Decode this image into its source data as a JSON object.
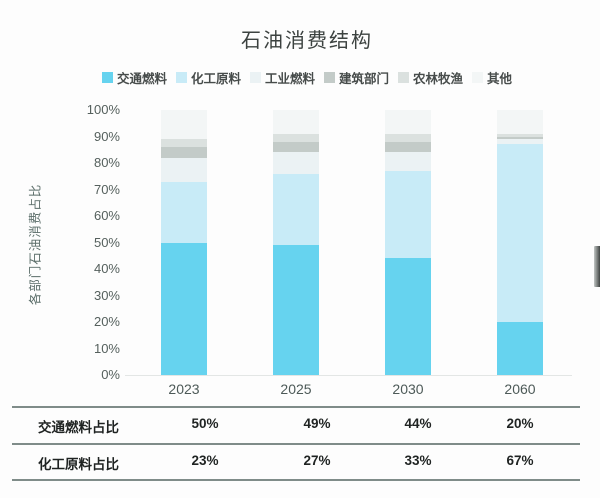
{
  "chart_data": {
    "type": "bar",
    "stacked": true,
    "title": "石油消费结构",
    "xlabel": "",
    "ylabel": "各部门石油消费占比",
    "ylim": [
      0,
      100
    ],
    "grid": false,
    "legend_position": "top",
    "yticks": [
      "0%",
      "10%",
      "20%",
      "30%",
      "40%",
      "50%",
      "60%",
      "70%",
      "80%",
      "90%",
      "100%"
    ],
    "categories": [
      "2023",
      "2025",
      "2030",
      "2060"
    ],
    "series": [
      {
        "name": "交通燃料",
        "color": "#66d3ef",
        "values": [
          50,
          49,
          44,
          20
        ]
      },
      {
        "name": "化工原料",
        "color": "#c8ebf7",
        "values": [
          23,
          27,
          33,
          67
        ]
      },
      {
        "name": "工业燃料",
        "color": "#ebf2f4",
        "values": [
          9,
          8,
          7,
          2
        ]
      },
      {
        "name": "建筑部门",
        "color": "#c3cbc8",
        "values": [
          4,
          4,
          4,
          1
        ]
      },
      {
        "name": "农林牧渔",
        "color": "#dbe1df",
        "values": [
          3,
          3,
          3,
          1
        ]
      },
      {
        "name": "其他",
        "color": "#f3f6f6",
        "values": [
          11,
          9,
          9,
          9
        ]
      }
    ]
  },
  "table": {
    "columns": [
      "2023",
      "2025",
      "2030",
      "2060"
    ],
    "rows": [
      {
        "label": "交通燃料占比",
        "values": [
          "50%",
          "49%",
          "44%",
          "20%"
        ]
      },
      {
        "label": "化工原料占比",
        "values": [
          "23%",
          "27%",
          "33%",
          "67%"
        ]
      }
    ]
  },
  "colors": {
    "accent_cyan": "#66d3ef",
    "axis_text": "#5c6e6a",
    "table_text": "#1f2322",
    "table_line": "#7f8c89",
    "baseline": "#e3e6e5",
    "background": "#fdfdfd"
  }
}
